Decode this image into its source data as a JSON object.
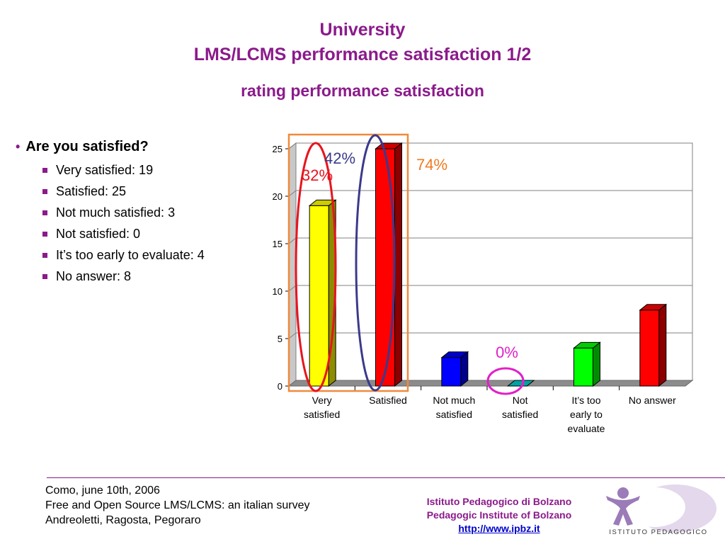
{
  "title": {
    "line1": "University",
    "line2": "LMS/LCMS performance satisfaction 1/2",
    "line3": "rating performance satisfaction"
  },
  "bullets": {
    "heading": "Are you satisfied?",
    "items": [
      "Very satisfied: 19",
      "Satisfied: 25",
      "Not much satisfied: 3",
      "Not satisfied: 0",
      "It’s too early to evaluate: 4",
      "No answer: 8"
    ]
  },
  "chart_data": {
    "type": "bar",
    "categories": [
      [
        "Very",
        "satisfied"
      ],
      [
        "Satisfied"
      ],
      [
        "Not much",
        "satisfied"
      ],
      [
        "Not",
        "satisfied"
      ],
      [
        "It’s too",
        "early to",
        "evaluate"
      ],
      [
        "No answer"
      ]
    ],
    "values": [
      19,
      25,
      3,
      0,
      4,
      8
    ],
    "colors": [
      "#ffff00",
      "#ff0000",
      "#0000ff",
      "#00cccc",
      "#00ff00",
      "#ff0000"
    ],
    "ylim": [
      0,
      25
    ],
    "yticks": [
      "0",
      "5",
      "10",
      "15",
      "20",
      "25"
    ],
    "grid": true,
    "annotations": [
      {
        "text": "32%",
        "color": "#e8141e"
      },
      {
        "text": "42%",
        "color": "#3a3a8c"
      },
      {
        "text": "74%",
        "color": "#f07a20"
      },
      {
        "text": "0%",
        "color": "#e020c8"
      }
    ]
  },
  "footer": {
    "left": [
      "Como, june 10th, 2006",
      "Free and Open Source LMS/LCMS: an italian survey",
      "Andreoletti, Ragosta, Pegoraro"
    ],
    "right": [
      "Istituto Pedagogico di Bolzano",
      "Pedagogic Institute of Bolzano"
    ],
    "link": "http://www.ipbz.it",
    "logo_text": "ISTITUTO PEDAGOGICO"
  }
}
